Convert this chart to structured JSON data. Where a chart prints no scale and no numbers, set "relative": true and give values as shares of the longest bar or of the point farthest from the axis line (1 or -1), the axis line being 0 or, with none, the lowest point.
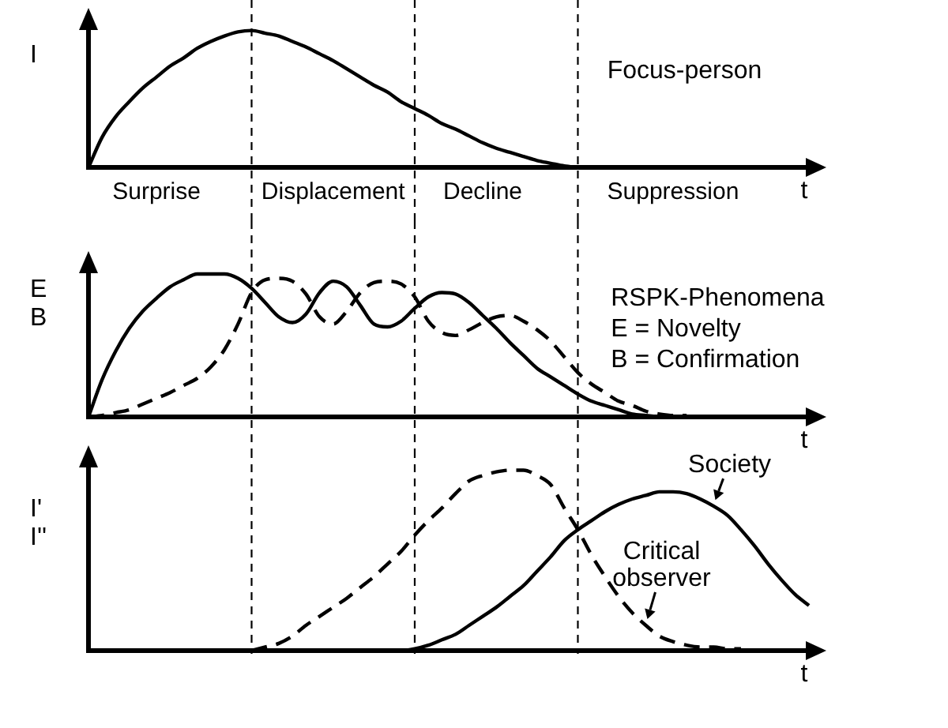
{
  "chart_data": [
    {
      "type": "line",
      "ylabel": "I",
      "xlabel": "t",
      "relative": true,
      "marker": "none",
      "categories": [
        null,
        null,
        null,
        null,
        null,
        "Surprise",
        null,
        null,
        null,
        null,
        null,
        null,
        null,
        null,
        null,
        null,
        null,
        null,
        "Displacement",
        null,
        null,
        null,
        null,
        null,
        null,
        null,
        null,
        null,
        null,
        "Decline",
        null,
        null,
        null,
        null,
        null,
        null,
        null,
        null,
        null,
        null,
        null,
        null,
        null,
        "Suppression",
        null,
        null,
        null,
        null,
        null,
        null,
        null,
        null,
        null,
        null
      ],
      "series": [
        {
          "color": "#000000",
          "line_style": "solid",
          "values": [
            0,
            0.22,
            0.37,
            0.48,
            0.58,
            0.66,
            0.74,
            0.8,
            0.87,
            0.92,
            0.96,
            0.99,
            1,
            0.98,
            0.96,
            0.92,
            0.88,
            0.83,
            0.78,
            0.72,
            0.66,
            0.6,
            0.55,
            0.48,
            0.43,
            0.38,
            0.32,
            0.28,
            0.23,
            0.18,
            0.14,
            0.11,
            0.08,
            0.05,
            0.03,
            0.01,
            0,
            null,
            null,
            null,
            null,
            null,
            null,
            null,
            null,
            null,
            null,
            null,
            null,
            null,
            null,
            null,
            null,
            null
          ]
        }
      ],
      "annotations": [
        "Focus-person"
      ]
    },
    {
      "type": "line",
      "ylabel": "E B",
      "xlabel": "t",
      "relative": true,
      "marker": "none",
      "categories": [
        null,
        null,
        null,
        null,
        null,
        null,
        null,
        null,
        null,
        null,
        null,
        null,
        null,
        null,
        null,
        null,
        null,
        null,
        null,
        null,
        null,
        null,
        null,
        null,
        null,
        null,
        null,
        null,
        null,
        null,
        null,
        null,
        null,
        null,
        null,
        null,
        null,
        null,
        null,
        null,
        null,
        null,
        null,
        null,
        null,
        null,
        null,
        null,
        null,
        null,
        null,
        null,
        null,
        null
      ],
      "series": [
        {
          "color": "#000000",
          "line_style": "solid",
          "values": [
            0,
            0.26,
            0.46,
            0.62,
            0.74,
            0.83,
            0.91,
            0.96,
            1,
            1,
            1,
            0.97,
            0.9,
            0.8,
            0.7,
            0.66,
            0.72,
            0.87,
            0.95,
            0.91,
            0.78,
            0.65,
            0.63,
            0.67,
            0.76,
            0.84,
            0.87,
            0.86,
            0.8,
            0.71,
            0.62,
            0.52,
            0.43,
            0.34,
            0.28,
            0.22,
            0.16,
            0.11,
            0.08,
            0.05,
            0.02,
            0.01,
            0,
            null,
            null,
            null,
            null,
            null,
            null,
            null,
            null,
            null,
            null,
            null
          ]
        },
        {
          "color": "#000000",
          "line_style": "dashed",
          "values": [
            0,
            0.01,
            0.03,
            0.05,
            0.09,
            0.13,
            0.17,
            0.22,
            0.27,
            0.35,
            0.47,
            0.65,
            0.87,
            0.96,
            0.97,
            0.95,
            0.86,
            0.7,
            0.65,
            0.74,
            0.87,
            0.94,
            0.95,
            0.93,
            0.84,
            0.67,
            0.59,
            0.57,
            0.61,
            0.66,
            0.7,
            0.71,
            0.67,
            0.61,
            0.53,
            0.42,
            0.31,
            0.23,
            0.17,
            0.11,
            0.08,
            0.04,
            0.02,
            0.01,
            0.01,
            null,
            null,
            null,
            null,
            null,
            null,
            null,
            null,
            null
          ]
        }
      ],
      "annotations": [
        "RSPK-Phenomena",
        "E = Novelty",
        "B = Confirmation"
      ]
    },
    {
      "type": "line",
      "ylabel": "I' I''",
      "xlabel": "t",
      "relative": true,
      "marker": "none",
      "categories": [
        null,
        null,
        null,
        null,
        null,
        null,
        null,
        null,
        null,
        null,
        null,
        null,
        null,
        null,
        null,
        null,
        null,
        null,
        null,
        null,
        null,
        null,
        null,
        null,
        null,
        null,
        null,
        null,
        null,
        null,
        null,
        null,
        null,
        null,
        null,
        null,
        null,
        null,
        null,
        null,
        null,
        null,
        null,
        null,
        null,
        null,
        null,
        null,
        null,
        null,
        null,
        null,
        null,
        null
      ],
      "series": [
        {
          "name": "Society",
          "color": "#000000",
          "line_style": "solid",
          "values": [
            null,
            null,
            null,
            null,
            null,
            null,
            null,
            null,
            null,
            null,
            null,
            null,
            null,
            null,
            null,
            null,
            null,
            null,
            null,
            null,
            null,
            0,
            0,
            0,
            0.01,
            0.03,
            0.06,
            0.09,
            0.14,
            0.19,
            0.24,
            0.3,
            0.36,
            0.44,
            0.52,
            0.61,
            0.67,
            0.72,
            0.77,
            0.81,
            0.84,
            0.86,
            0.88,
            0.88,
            0.87,
            0.84,
            0.8,
            0.75,
            0.67,
            0.58,
            0.48,
            0.39,
            0.31,
            0.25
          ]
        },
        {
          "name": "Critical observer",
          "color": "#000000",
          "line_style": "dashed",
          "values": [
            null,
            null,
            null,
            null,
            null,
            null,
            null,
            null,
            null,
            null,
            null,
            null,
            0,
            0.02,
            0.04,
            0.08,
            0.14,
            0.19,
            0.24,
            0.29,
            0.35,
            0.41,
            0.48,
            0.55,
            0.64,
            0.72,
            0.79,
            0.87,
            0.94,
            0.97,
            0.99,
            1,
            1,
            0.97,
            0.92,
            0.79,
            0.67,
            0.53,
            0.41,
            0.3,
            0.21,
            0.14,
            0.08,
            0.05,
            0.03,
            0.02,
            0.02,
            0.01,
            0.01,
            null,
            null,
            null,
            null,
            null
          ]
        }
      ]
    }
  ]
}
